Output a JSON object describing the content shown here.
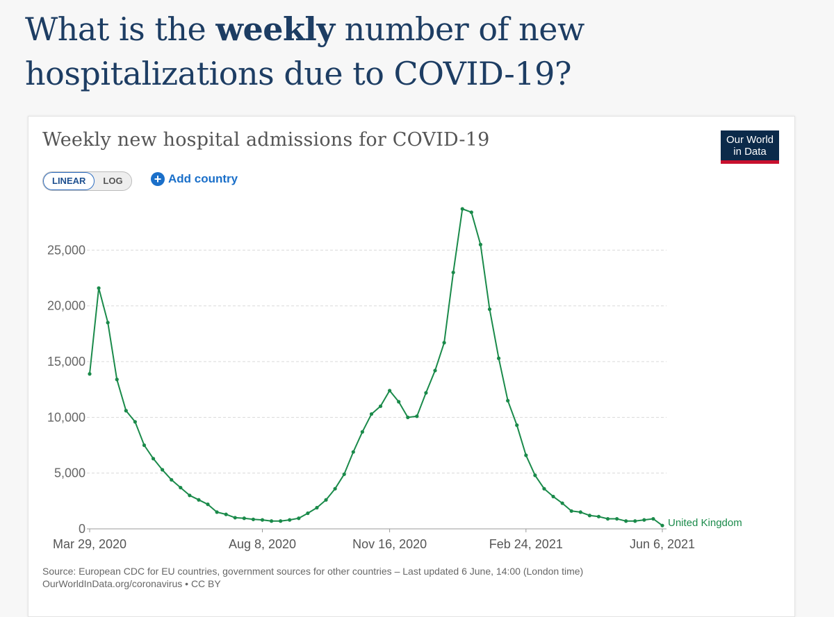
{
  "headline": {
    "part1": "What is the ",
    "bold": "weekly",
    "part2": " number of new hospitalizations due to COVID-19?"
  },
  "card": {
    "title": "Weekly new hospital admissions for COVID-19",
    "logo_line1": "Our World",
    "logo_line2": "in Data",
    "scale_linear": "LINEAR",
    "scale_log": "LOG",
    "add_country": "Add country",
    "source_line1": "Source: European CDC for EU countries, government sources for other countries – Last updated 6 June, 14:00 (London time)",
    "source_line2": "OurWorldInData.org/coronavirus • CC BY"
  },
  "colors": {
    "series": "#1a8a4a",
    "headline": "#1d3d63",
    "accent": "#1a6fc9",
    "logo_bar": "#c8102e"
  },
  "chart_data": {
    "type": "line",
    "title": "Weekly new hospital admissions for COVID-19",
    "xlabel": "",
    "ylabel": "",
    "ylim": [
      0,
      28700
    ],
    "yticks": [
      0,
      5000,
      10000,
      15000,
      20000,
      25000
    ],
    "ytick_labels": [
      "0",
      "5,000",
      "10,000",
      "15,000",
      "20,000",
      "25,000"
    ],
    "xtick_labels": [
      {
        "index": 0,
        "label": "Mar 29, 2020"
      },
      {
        "index": 19,
        "label": "Aug 8, 2020"
      },
      {
        "index": 33,
        "label": "Nov 16, 2020"
      },
      {
        "index": 48,
        "label": "Feb 24, 2021"
      },
      {
        "index": 63,
        "label": "Jun 6, 2021"
      }
    ],
    "series": [
      {
        "name": "United Kingdom",
        "values": [
          13900,
          21600,
          18500,
          13400,
          10600,
          9600,
          7500,
          6300,
          5300,
          4400,
          3700,
          3000,
          2600,
          2200,
          1500,
          1300,
          1000,
          950,
          850,
          800,
          700,
          700,
          800,
          950,
          1400,
          1900,
          2600,
          3600,
          4900,
          6900,
          8700,
          10300,
          11000,
          12400,
          11400,
          10000,
          10100,
          12200,
          14200,
          16700,
          23000,
          28700,
          28400,
          25500,
          19700,
          15300,
          11500,
          9300,
          6600,
          4800,
          3600,
          2900,
          2300,
          1600,
          1500,
          1200,
          1100,
          900,
          900,
          700,
          700,
          800,
          900,
          300
        ]
      }
    ]
  }
}
